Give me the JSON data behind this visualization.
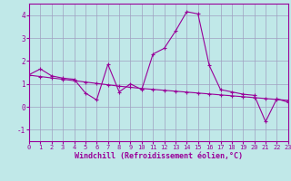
{
  "xlabel": "Windchill (Refroidissement éolien,°C)",
  "bg_color": "#c0e8e8",
  "line_color": "#990099",
  "grid_color": "#a0a0c0",
  "x_data": [
    0,
    1,
    2,
    3,
    4,
    5,
    6,
    7,
    8,
    9,
    10,
    11,
    12,
    13,
    14,
    15,
    16,
    17,
    18,
    19,
    20,
    21,
    22,
    23
  ],
  "y_main": [
    1.4,
    1.65,
    1.35,
    1.25,
    1.2,
    0.6,
    0.3,
    1.85,
    0.65,
    1.0,
    0.75,
    2.3,
    2.55,
    3.3,
    4.15,
    4.05,
    1.8,
    0.75,
    0.65,
    0.55,
    0.5,
    -0.65,
    0.35,
    0.2
  ],
  "y_trend": [
    1.38,
    1.32,
    1.26,
    1.2,
    1.14,
    1.08,
    1.02,
    0.96,
    0.9,
    0.85,
    0.8,
    0.76,
    0.72,
    0.68,
    0.64,
    0.6,
    0.56,
    0.52,
    0.48,
    0.44,
    0.4,
    0.36,
    0.32,
    0.28
  ],
  "xlim": [
    0,
    23
  ],
  "ylim": [
    -1.5,
    4.5
  ],
  "yticks": [
    -1,
    0,
    1,
    2,
    3,
    4
  ],
  "xticks": [
    0,
    1,
    2,
    3,
    4,
    5,
    6,
    7,
    8,
    9,
    10,
    11,
    12,
    13,
    14,
    15,
    16,
    17,
    18,
    19,
    20,
    21,
    22,
    23
  ],
  "xtick_labels": [
    "0",
    "1",
    "2",
    "3",
    "4",
    "5",
    "6",
    "7",
    "8",
    "9",
    "10",
    "11",
    "12",
    "13",
    "14",
    "15",
    "16",
    "17",
    "18",
    "19",
    "20",
    "21",
    "22",
    "23"
  ],
  "marker": "+",
  "linewidth": 0.8,
  "markersize": 3.5,
  "tick_fontsize": 5.0,
  "xlabel_fontsize": 6.0
}
